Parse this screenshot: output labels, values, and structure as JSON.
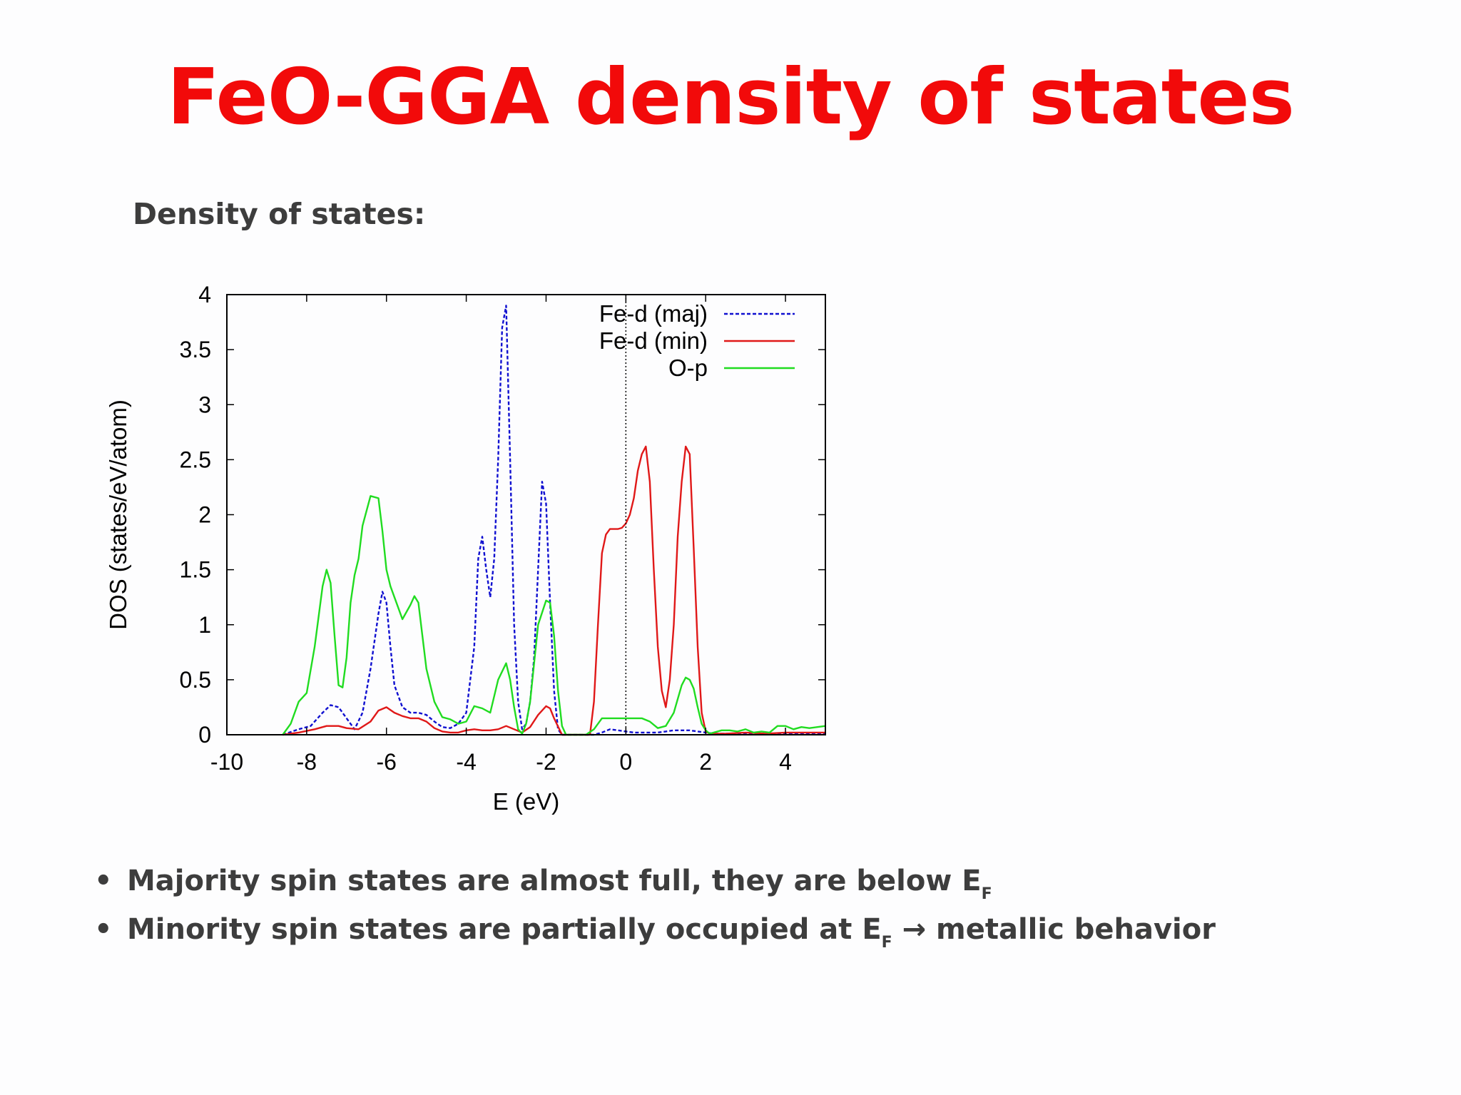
{
  "title": "FeO-GGA density of states",
  "subtitle": "Density of states:",
  "bullets": [
    {
      "text": "Majority spin states are almost full, they are below E",
      "sub": "F",
      "suffix": ""
    },
    {
      "text": "Minority spin states are partially occupied at E",
      "sub": "F",
      "suffix": " → metallic behavior"
    }
  ],
  "chart_data": {
    "type": "line",
    "xlabel": "E (eV)",
    "ylabel": "DOS (states/eV/atom)",
    "xlim": [
      -10,
      5
    ],
    "ylim": [
      0,
      4
    ],
    "xticks": [
      "-10",
      "-8",
      "-6",
      "-4",
      "-2",
      "0",
      "2",
      "4"
    ],
    "yticks": [
      "0",
      "0.5",
      "1",
      "1.5",
      "2",
      "2.5",
      "3",
      "3.5",
      "4"
    ],
    "grid": false,
    "legend_position": "top-right",
    "fermi_level": 0,
    "series": [
      {
        "name": "Fe-d (maj)",
        "color": "#1010d0",
        "dash": "dashed",
        "x": [
          -8.6,
          -8.2,
          -7.9,
          -7.6,
          -7.4,
          -7.2,
          -7.0,
          -6.8,
          -6.6,
          -6.4,
          -6.2,
          -6.1,
          -6.0,
          -5.9,
          -5.8,
          -5.6,
          -5.4,
          -5.2,
          -5.0,
          -4.8,
          -4.6,
          -4.4,
          -4.2,
          -4.0,
          -3.8,
          -3.7,
          -3.6,
          -3.5,
          -3.4,
          -3.3,
          -3.2,
          -3.1,
          -3.0,
          -2.9,
          -2.8,
          -2.7,
          -2.6,
          -2.5,
          -2.4,
          -2.3,
          -2.2,
          -2.1,
          -2.0,
          -1.9,
          -1.8,
          -1.7,
          -1.6,
          -1.4,
          -1.2,
          -1.0,
          -0.8,
          -0.6,
          -0.4,
          -0.2,
          0.0,
          0.2,
          0.4,
          0.6,
          0.8,
          1.0,
          1.2,
          1.4,
          1.6,
          1.8,
          2.0,
          2.2,
          2.5,
          3.0,
          3.5,
          4.0,
          4.5,
          5.0
        ],
        "y": [
          0,
          0.05,
          0.08,
          0.2,
          0.27,
          0.25,
          0.15,
          0.05,
          0.2,
          0.6,
          1.1,
          1.3,
          1.2,
          0.8,
          0.45,
          0.25,
          0.2,
          0.2,
          0.18,
          0.12,
          0.07,
          0.06,
          0.1,
          0.2,
          0.8,
          1.6,
          1.8,
          1.5,
          1.25,
          1.6,
          2.5,
          3.7,
          3.9,
          2.5,
          1.0,
          0.3,
          0.05,
          0.1,
          0.3,
          0.7,
          1.5,
          2.3,
          2.1,
          1.2,
          0.4,
          0.05,
          0,
          0,
          0,
          0,
          0,
          0.02,
          0.05,
          0.04,
          0.03,
          0.02,
          0.02,
          0.02,
          0.02,
          0.03,
          0.04,
          0.04,
          0.04,
          0.03,
          0.02,
          0.01,
          0.01,
          0.01,
          0.01,
          0.01,
          0.01,
          0.01
        ]
      },
      {
        "name": "Fe-d (min)",
        "color": "#e01818",
        "dash": "solid",
        "x": [
          -8.6,
          -8.2,
          -7.8,
          -7.5,
          -7.2,
          -7.0,
          -6.7,
          -6.4,
          -6.2,
          -6.0,
          -5.8,
          -5.6,
          -5.4,
          -5.2,
          -5.0,
          -4.8,
          -4.6,
          -4.4,
          -4.2,
          -4.0,
          -3.8,
          -3.6,
          -3.4,
          -3.2,
          -3.0,
          -2.8,
          -2.6,
          -2.4,
          -2.2,
          -2.0,
          -1.9,
          -1.8,
          -1.6,
          -1.4,
          -1.2,
          -1.0,
          -0.9,
          -0.8,
          -0.7,
          -0.6,
          -0.5,
          -0.4,
          -0.3,
          -0.2,
          -0.1,
          0.0,
          0.1,
          0.2,
          0.3,
          0.4,
          0.5,
          0.6,
          0.7,
          0.8,
          0.9,
          1.0,
          1.1,
          1.2,
          1.3,
          1.4,
          1.5,
          1.6,
          1.7,
          1.8,
          1.9,
          2.0,
          2.1,
          2.5,
          3.0,
          3.5,
          4.0,
          4.5,
          5.0
        ],
        "y": [
          0,
          0.02,
          0.05,
          0.08,
          0.08,
          0.06,
          0.05,
          0.12,
          0.22,
          0.25,
          0.2,
          0.17,
          0.15,
          0.15,
          0.12,
          0.06,
          0.03,
          0.02,
          0.02,
          0.04,
          0.05,
          0.04,
          0.04,
          0.05,
          0.08,
          0.05,
          0.02,
          0.07,
          0.18,
          0.26,
          0.24,
          0.15,
          0,
          0,
          0,
          0,
          0,
          0.3,
          1.0,
          1.65,
          1.82,
          1.87,
          1.87,
          1.87,
          1.88,
          1.92,
          2.0,
          2.15,
          2.4,
          2.55,
          2.62,
          2.3,
          1.5,
          0.8,
          0.4,
          0.25,
          0.5,
          1.0,
          1.8,
          2.3,
          2.62,
          2.55,
          1.7,
          0.8,
          0.2,
          0.03,
          0.01,
          0.01,
          0.02,
          0.01,
          0.02,
          0.02,
          0.02
        ]
      },
      {
        "name": "O-p",
        "color": "#20dc20",
        "dash": "solid",
        "x": [
          -8.6,
          -8.4,
          -8.2,
          -8.0,
          -7.8,
          -7.6,
          -7.5,
          -7.4,
          -7.3,
          -7.2,
          -7.1,
          -7.0,
          -6.9,
          -6.8,
          -6.7,
          -6.6,
          -6.4,
          -6.2,
          -6.1,
          -6.0,
          -5.9,
          -5.8,
          -5.6,
          -5.4,
          -5.3,
          -5.2,
          -5.1,
          -5.0,
          -4.8,
          -4.6,
          -4.4,
          -4.2,
          -4.0,
          -3.8,
          -3.6,
          -3.4,
          -3.2,
          -3.0,
          -2.9,
          -2.8,
          -2.7,
          -2.6,
          -2.5,
          -2.4,
          -2.2,
          -2.0,
          -1.9,
          -1.8,
          -1.7,
          -1.6,
          -1.5,
          -1.4,
          -1.2,
          -1.0,
          -0.8,
          -0.6,
          -0.4,
          -0.2,
          0.0,
          0.2,
          0.4,
          0.6,
          0.8,
          1.0,
          1.2,
          1.4,
          1.5,
          1.6,
          1.7,
          1.8,
          1.9,
          2.0,
          2.1,
          2.2,
          2.4,
          2.6,
          2.8,
          3.0,
          3.2,
          3.4,
          3.6,
          3.8,
          4.0,
          4.2,
          4.4,
          4.6,
          4.8,
          5.0
        ],
        "y": [
          0,
          0.1,
          0.3,
          0.38,
          0.8,
          1.35,
          1.5,
          1.38,
          0.9,
          0.45,
          0.43,
          0.7,
          1.2,
          1.45,
          1.6,
          1.9,
          2.17,
          2.15,
          1.85,
          1.5,
          1.35,
          1.25,
          1.05,
          1.18,
          1.26,
          1.2,
          0.9,
          0.6,
          0.3,
          0.16,
          0.14,
          0.1,
          0.12,
          0.26,
          0.24,
          0.2,
          0.5,
          0.65,
          0.5,
          0.25,
          0.05,
          0.01,
          0.1,
          0.3,
          1.0,
          1.22,
          1.2,
          0.9,
          0.4,
          0.08,
          0,
          0,
          0,
          0,
          0.05,
          0.15,
          0.15,
          0.15,
          0.15,
          0.15,
          0.15,
          0.12,
          0.06,
          0.08,
          0.2,
          0.45,
          0.52,
          0.5,
          0.42,
          0.25,
          0.1,
          0.04,
          0.01,
          0.02,
          0.04,
          0.04,
          0.03,
          0.05,
          0.02,
          0.03,
          0.02,
          0.08,
          0.08,
          0.05,
          0.07,
          0.06,
          0.07,
          0.08
        ]
      }
    ]
  }
}
